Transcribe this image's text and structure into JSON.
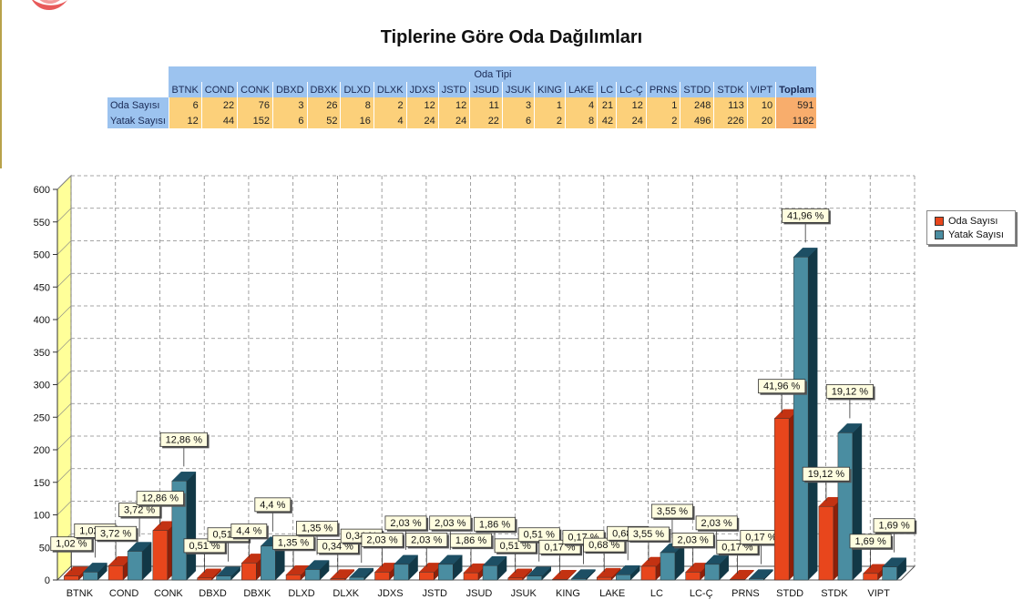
{
  "title": "Tiplerine Göre Oda Dağılımları",
  "table": {
    "group_header": "Oda Tipi",
    "columns": [
      "BTNK",
      "COND",
      "CONK",
      "DBXD",
      "DBXK",
      "DLXD",
      "DLXK",
      "JDXS",
      "JSTD",
      "JSUD",
      "JSUK",
      "KING",
      "LAKE",
      "LC",
      "LC-Ç",
      "PRNS",
      "STDD",
      "STDK",
      "VIPT"
    ],
    "total_label": "Toplam",
    "rows": [
      {
        "label": "Oda Sayısı",
        "values": [
          6,
          22,
          76,
          3,
          26,
          8,
          2,
          12,
          12,
          11,
          3,
          1,
          4,
          21,
          12,
          1,
          248,
          113,
          10
        ],
        "total": 591
      },
      {
        "label": "Yatak Sayısı",
        "values": [
          12,
          44,
          152,
          6,
          52,
          16,
          4,
          24,
          24,
          22,
          6,
          2,
          8,
          42,
          24,
          2,
          496,
          226,
          20
        ],
        "total": 1182
      }
    ]
  },
  "legend": [
    "Oda Sayısı",
    "Yatak Sayısı"
  ],
  "colors": {
    "oda": "#e8461c",
    "oda_top": "#c33212",
    "oda_side": "#8e1f08",
    "yatak": "#4a8da1",
    "yatak_top": "#1d4f64",
    "yatak_side": "#123846",
    "side_wall": "#ffff99",
    "table_header": "#9cc3ef",
    "table_cell": "#fcd07a",
    "table_total": "#f8ad6c"
  },
  "chart_data": {
    "type": "bar",
    "categories": [
      "BTNK",
      "COND",
      "CONK",
      "DBXD",
      "DBXK",
      "DLXD",
      "DLXK",
      "JDXS",
      "JSTD",
      "JSUD",
      "JSUK",
      "KING",
      "LAKE",
      "LC",
      "LC-Ç",
      "PRNS",
      "STDD",
      "STDK",
      "VIPT"
    ],
    "series": [
      {
        "name": "Oda Sayısı",
        "values": [
          6,
          22,
          76,
          3,
          26,
          8,
          2,
          12,
          12,
          11,
          3,
          1,
          4,
          21,
          12,
          1,
          248,
          113,
          10
        ],
        "labels": [
          "1,02 %",
          "3,72 %",
          "12,86 %",
          "0,51 %",
          "4,4 %",
          "1,35 %",
          "0,34 %",
          "2,03 %",
          "2,03 %",
          "1,86 %",
          "0,51 %",
          "0,17 %",
          "0,68 %",
          "3,55 %",
          "2,03 %",
          "0,17 %",
          "41,96 %",
          "19,12 %",
          "1,69 %"
        ]
      },
      {
        "name": "Yatak Sayısı",
        "values": [
          12,
          44,
          152,
          6,
          52,
          16,
          4,
          24,
          24,
          22,
          6,
          2,
          8,
          42,
          24,
          2,
          496,
          226,
          20
        ],
        "labels": [
          "1,02 %",
          "3,72 %",
          "12,86 %",
          "0,51 %",
          "4,4 %",
          "1,35 %",
          "0,34 %",
          "2,03 %",
          "2,03 %",
          "1,86 %",
          "0,51 %",
          "0,17 %",
          "0,68 %",
          "3,55 %",
          "2,03 %",
          "0,17 %",
          "41,96 %",
          "19,12 %",
          "1,69 %"
        ]
      }
    ],
    "y_ticks": [
      0,
      50,
      100,
      150,
      200,
      250,
      300,
      350,
      400,
      450,
      500,
      550,
      600
    ],
    "ylim": [
      0,
      600
    ],
    "grid": true,
    "legend_position": "right"
  }
}
